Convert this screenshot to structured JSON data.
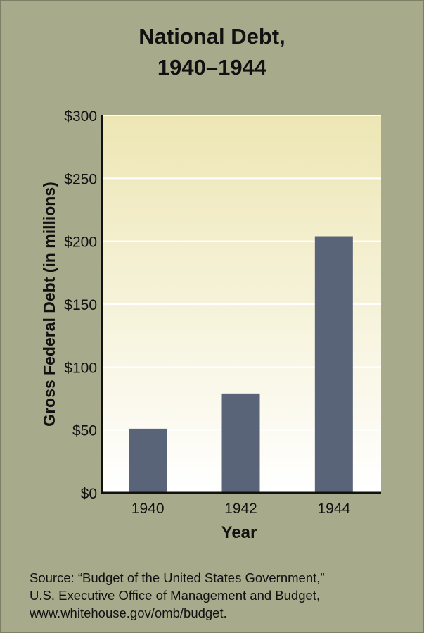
{
  "title_lines": [
    "National Debt,",
    "1940–1944"
  ],
  "chart_data": {
    "type": "bar",
    "title": "National Debt, 1940–1944",
    "categories": [
      "1940",
      "1942",
      "1944"
    ],
    "values": [
      51,
      79,
      204
    ],
    "xlabel": "Year",
    "ylabel": "Gross Federal Debt (in millions)",
    "ylim": [
      0,
      300
    ],
    "yticks": [
      0,
      50,
      100,
      150,
      200,
      250,
      300
    ],
    "ytick_labels": [
      "$0",
      "$50",
      "$100",
      "$150",
      "$200",
      "$250",
      "$300"
    ],
    "grid": true,
    "bar_color": "#5a6478"
  },
  "source_lines": [
    "Source: “Budget of the United States Government,”",
    "U.S. Executive Office of Management and Budget,",
    "www.whitehouse.gov/omb/budget."
  ],
  "colors": {
    "background": "#a8aa8c",
    "plot_top": "#ede6b4",
    "plot_bottom": "#ffffff",
    "bar": "#5a6478"
  }
}
